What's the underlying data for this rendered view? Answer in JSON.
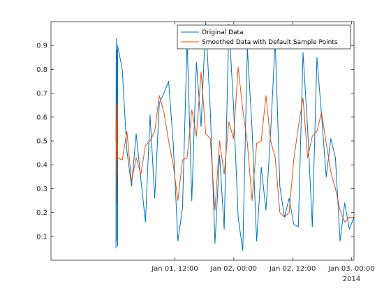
{
  "chart_data": {
    "type": "line",
    "title": "",
    "xlabel": "",
    "ylabel": "",
    "x_start": "2014-01-01 00:00",
    "x_end": "2014-01-03 00:00",
    "xlim": [
      "2013-12-31 10:45",
      "2014-01-03 00:30"
    ],
    "ylim": [
      0,
      1
    ],
    "x_ticks": [
      {
        "at": "2014-01-01 12:00",
        "label": "Jan 01, 12:00"
      },
      {
        "at": "2014-01-02 00:00",
        "label": "Jan 02, 00:00"
      },
      {
        "at": "2014-01-02 12:00",
        "label": "Jan 02, 12:00"
      },
      {
        "at": "2014-01-03 00:00",
        "label": "Jan 03, 00:00"
      }
    ],
    "x_secondary_label": "2014",
    "y_ticks": [
      0.1,
      0.2,
      0.3,
      0.4,
      0.5,
      0.6,
      0.7,
      0.8,
      0.9
    ],
    "grid": false,
    "legend_position": "top-right",
    "series": [
      {
        "name": "Original Data",
        "color": "#0072BD",
        "dense_start": [
          0.05,
          0.93,
          0.08,
          0.62,
          0.28,
          0.88,
          0.35,
          0.69,
          0.06
        ],
        "values": [
          0.9,
          0.8,
          0.46,
          0.31,
          0.53,
          0.34,
          0.16,
          0.61,
          0.26,
          0.66,
          0.7,
          0.75,
          0.49,
          0.08,
          0.22,
          0.92,
          0.25,
          0.83,
          0.56,
          1.0,
          0.63,
          0.07,
          0.44,
          0.13,
          0.99,
          0.65,
          0.18,
          0.04,
          0.89,
          0.55,
          0.08,
          0.39,
          0.21,
          0.53,
          0.92,
          0.31,
          0.18,
          0.26,
          0.15,
          0.14,
          0.87,
          0.55,
          0.14,
          0.85,
          0.61,
          0.35,
          0.51,
          0.43,
          0.08,
          0.24,
          0.13,
          0.18
        ]
      },
      {
        "name": "Smoothed Data with Default Sample Points",
        "color": "#D95319",
        "dense_start": [
          0.5,
          0.65,
          0.36,
          0.58,
          0.24,
          0.55,
          0.42,
          0.66,
          0.44
        ],
        "values": [
          0.43,
          0.42,
          0.54,
          0.33,
          0.43,
          0.36,
          0.48,
          0.5,
          0.54,
          0.69,
          0.62,
          0.5,
          0.4,
          0.25,
          0.42,
          0.43,
          0.63,
          0.52,
          0.79,
          0.53,
          0.51,
          0.21,
          0.5,
          0.36,
          0.58,
          0.51,
          0.81,
          0.63,
          0.49,
          0.25,
          0.49,
          0.5,
          0.69,
          0.5,
          0.43,
          0.2,
          0.18,
          0.2,
          0.42,
          0.56,
          0.68,
          0.43,
          0.52,
          0.54,
          0.62,
          0.49,
          0.37,
          0.3,
          0.21,
          0.16,
          0.18,
          0.18
        ]
      }
    ]
  }
}
